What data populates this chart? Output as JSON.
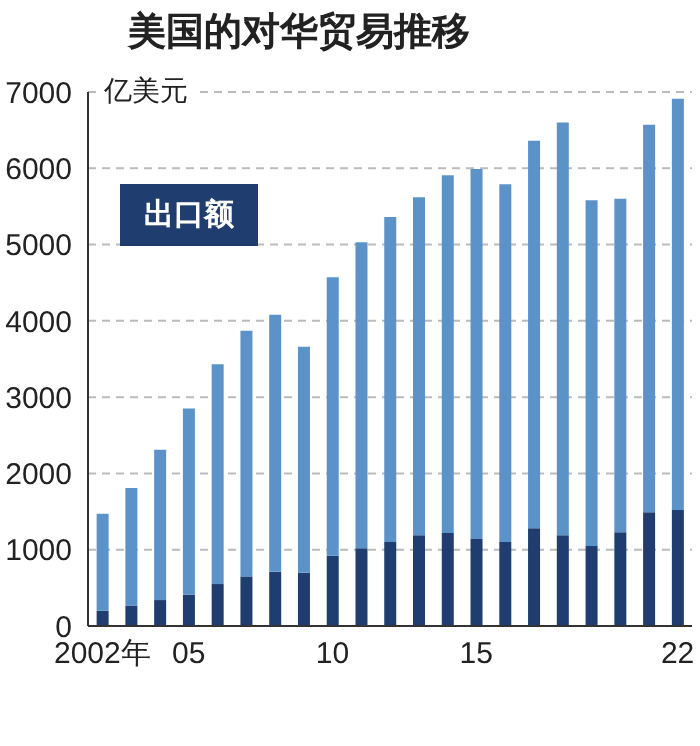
{
  "chart_data": {
    "type": "bar",
    "title": "美国的对华贸易推移",
    "ylabel": "亿美元",
    "categories": [
      "2002年",
      null,
      null,
      "05",
      null,
      null,
      null,
      null,
      "10",
      null,
      null,
      null,
      null,
      "15",
      null,
      null,
      null,
      null,
      null,
      null,
      "22"
    ],
    "stacked": true,
    "series": [
      {
        "name": "出口额",
        "color": "#1f3d6e",
        "values": [
          200,
          270,
          340,
          410,
          550,
          650,
          710,
          700,
          920,
          1020,
          1100,
          1190,
          1220,
          1140,
          1100,
          1280,
          1190,
          1050,
          1230,
          1490,
          1520
        ]
      },
      {
        "color": "#5b93c9",
        "values": [
          1270,
          1540,
          1970,
          2440,
          2880,
          3220,
          3370,
          2960,
          3650,
          4010,
          4260,
          4430,
          4690,
          4850,
          4690,
          5080,
          5410,
          4530,
          4370,
          5080,
          5390
        ]
      }
    ],
    "ylim": [
      0,
      7000
    ],
    "yticks": [
      0,
      1000,
      2000,
      3000,
      4000,
      5000,
      6000,
      7000
    ],
    "grid": "y",
    "legend": "top left"
  }
}
